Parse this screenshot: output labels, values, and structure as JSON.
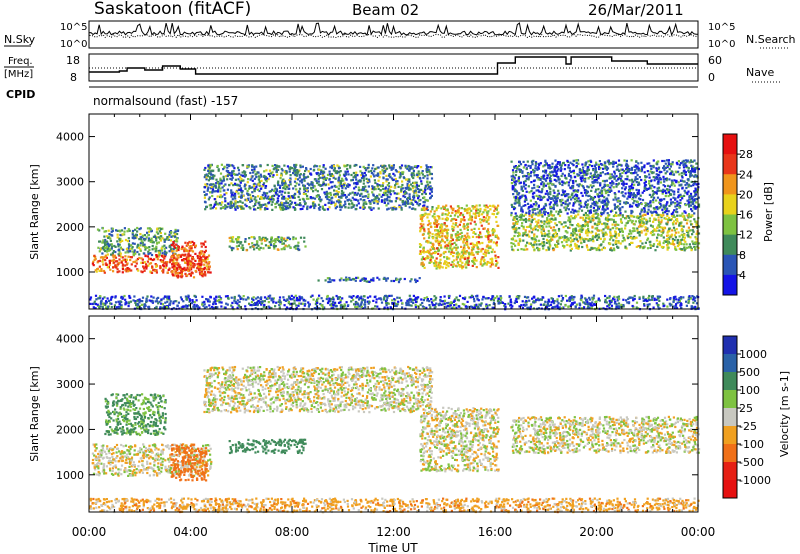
{
  "header": {
    "station": "Saskatoon (fitACF)",
    "beam": "Beam 02",
    "date": "26/Mar/2011"
  },
  "noise_panel": {
    "left_label": "N.Sky",
    "right_label": "N.Search",
    "ticks_left": [
      "10^5",
      "10^0"
    ],
    "ticks_right": [
      "10^5",
      "10^0"
    ]
  },
  "freq_panel": {
    "left_label_1": "Freq.",
    "left_label_2": "[MHz]",
    "ticks_left": [
      "18",
      "8"
    ],
    "right_label": "Nave",
    "ticks_right": [
      "60",
      "0"
    ]
  },
  "cpid_panel": {
    "label": "CPID",
    "value": "normalsound (fast) -157"
  },
  "chart_data": [
    {
      "type": "heatmap",
      "name": "power",
      "ylabel": "Slant Range [km]",
      "yticks": [
        "1000",
        "2000",
        "3000",
        "4000"
      ],
      "ylim": [
        180,
        4500
      ],
      "xlim": [
        "00:00",
        "24:00"
      ],
      "colorbar": {
        "label": "Power [dB]",
        "ticks": [
          "4",
          "8",
          "12",
          "16",
          "20",
          "24",
          "28"
        ],
        "colors": [
          "#1414e6",
          "#2a55b5",
          "#3f8a5a",
          "#7ec241",
          "#e8d21c",
          "#f0951c",
          "#e9361a",
          "#e61010"
        ]
      },
      "bands": [
        {
          "t0": 0.1,
          "t1": 4.8,
          "r0": 1000,
          "r1": 1400,
          "value": 24
        },
        {
          "t0": 0.3,
          "t1": 3.5,
          "r0": 1400,
          "r1": 2000,
          "value": 10
        },
        {
          "t0": 3.2,
          "t1": 4.6,
          "r0": 900,
          "r1": 1700,
          "value": 26
        },
        {
          "t0": 4.5,
          "t1": 13.5,
          "r0": 2400,
          "r1": 3400,
          "value": 8
        },
        {
          "t0": 13.0,
          "t1": 16.1,
          "r0": 1100,
          "r1": 2500,
          "value": 18
        },
        {
          "t0": 16.6,
          "t1": 24.0,
          "r0": 1500,
          "r1": 2300,
          "value": 14
        },
        {
          "t0": 16.6,
          "t1": 24.0,
          "r0": 2300,
          "r1": 3500,
          "value": 6
        },
        {
          "t0": 5.5,
          "t1": 8.5,
          "r0": 1500,
          "r1": 1800,
          "value": 12
        },
        {
          "t0": 9.0,
          "t1": 13.0,
          "r0": 800,
          "r1": 900,
          "value": 6
        },
        {
          "t0": 0.0,
          "t1": 24.0,
          "r0": 200,
          "r1": 500,
          "value": 5
        }
      ]
    },
    {
      "type": "heatmap",
      "name": "velocity",
      "ylabel": "Slant Range [km]",
      "yticks": [
        "1000",
        "2000",
        "3000",
        "4000"
      ],
      "ylim": [
        180,
        4500
      ],
      "xlim": [
        "00:00",
        "24:00"
      ],
      "xticks": [
        "00:00",
        "04:00",
        "08:00",
        "12:00",
        "16:00",
        "20:00",
        "00:00"
      ],
      "xlabel": "Time UT",
      "colorbar": {
        "label": "Velocity [m s-1]",
        "ticks": [
          "1000",
          "500",
          "100",
          "25",
          "-25",
          "-100",
          "-500",
          "-1000"
        ],
        "colors": [
          "#2030b0",
          "#2a62a8",
          "#3f8a5a",
          "#7ec241",
          "#c8c8c0",
          "#f0a020",
          "#f07018",
          "#e62014",
          "#e61010"
        ]
      },
      "bands": [
        {
          "t0": 0.1,
          "t1": 4.8,
          "r0": 1000,
          "r1": 1700,
          "value": 0
        },
        {
          "t0": 3.2,
          "t1": 4.6,
          "r0": 900,
          "r1": 1700,
          "value": -200
        },
        {
          "t0": 0.6,
          "t1": 3.0,
          "r0": 1900,
          "r1": 2800,
          "value": 120
        },
        {
          "t0": 4.5,
          "t1": 13.5,
          "r0": 2400,
          "r1": 3400,
          "value": 0
        },
        {
          "t0": 13.0,
          "t1": 16.1,
          "r0": 1100,
          "r1": 2500,
          "value": 0
        },
        {
          "t0": 16.6,
          "t1": 24.0,
          "r0": 1500,
          "r1": 2300,
          "value": 0
        },
        {
          "t0": 5.5,
          "t1": 8.5,
          "r0": 1500,
          "r1": 1800,
          "value": 200
        },
        {
          "t0": 0.0,
          "t1": 24.0,
          "r0": 200,
          "r1": 500,
          "value": -60
        }
      ]
    }
  ]
}
